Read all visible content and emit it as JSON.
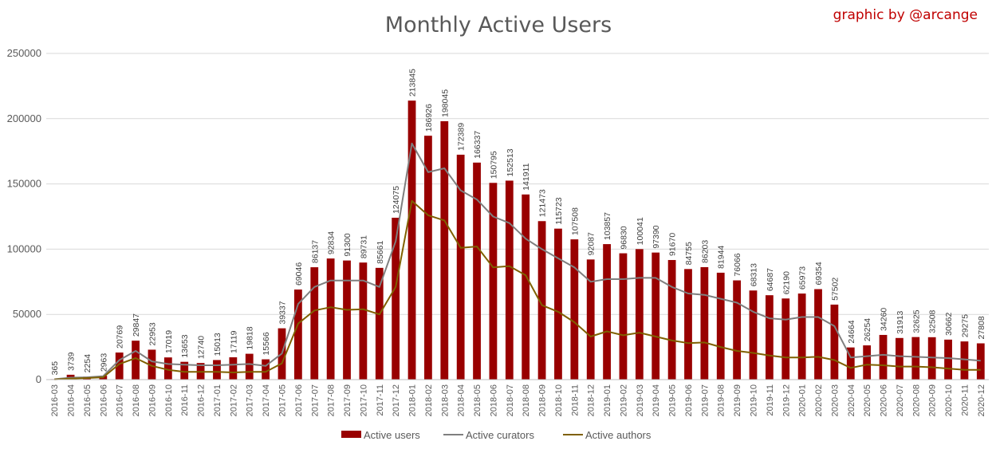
{
  "chart_data": {
    "type": "bar",
    "title": "Monthly Active Users",
    "credit": "graphic by @arcange",
    "xlabel": "",
    "ylabel": "",
    "ylim": [
      0,
      250000
    ],
    "y_ticks": [
      0,
      50000,
      100000,
      150000,
      200000,
      250000
    ],
    "grid": true,
    "legend_position": "bottom",
    "categories": [
      "2016-03",
      "2016-04",
      "2016-05",
      "2016-06",
      "2016-07",
      "2016-08",
      "2016-09",
      "2016-10",
      "2016-11",
      "2016-12",
      "2017-01",
      "2017-02",
      "2017-03",
      "2017-04",
      "2017-05",
      "2017-06",
      "2017-07",
      "2017-08",
      "2017-09",
      "2017-10",
      "2017-11",
      "2017-12",
      "2018-01",
      "2018-02",
      "2018-03",
      "2018-04",
      "2018-05",
      "2018-06",
      "2018-07",
      "2018-08",
      "2018-09",
      "2018-10",
      "2018-11",
      "2018-12",
      "2019-01",
      "2019-02",
      "2019-03",
      "2019-04",
      "2019-05",
      "2019-06",
      "2019-07",
      "2019-08",
      "2019-09",
      "2019-10",
      "2019-11",
      "2019-12",
      "2020-01",
      "2020-02",
      "2020-03",
      "2020-04",
      "2020-05",
      "2020-06",
      "2020-07",
      "2020-08",
      "2020-09",
      "2020-10",
      "2020-11",
      "2020-12"
    ],
    "series": [
      {
        "name": "Active users",
        "kind": "bar",
        "color": "#990000",
        "values": [
          365,
          3739,
          2254,
          2963,
          20769,
          29847,
          22953,
          17019,
          13653,
          12740,
          15013,
          17119,
          19818,
          15566,
          39337,
          69046,
          86137,
          92834,
          91300,
          89731,
          85661,
          124075,
          213845,
          186926,
          198045,
          172389,
          166337,
          150795,
          152513,
          141911,
          121473,
          115723,
          107508,
          92087,
          103857,
          96830,
          100041,
          97390,
          91670,
          84755,
          86203,
          81944,
          76066,
          68313,
          64687,
          62190,
          65973,
          69354,
          57502,
          24664,
          26254,
          34260,
          31913,
          32625,
          32508,
          30662,
          29275,
          27808
        ]
      },
      {
        "name": "Active curators",
        "kind": "line",
        "color": "#7f7f7f",
        "values": [
          300,
          1500,
          1800,
          2600,
          15000,
          22000,
          14000,
          12000,
          11500,
          11000,
          11000,
          11500,
          12000,
          10500,
          20000,
          58000,
          71000,
          76000,
          76000,
          76000,
          71000,
          106000,
          181000,
          159000,
          162000,
          145000,
          138000,
          125000,
          120000,
          108000,
          100000,
          93000,
          86000,
          75000,
          77000,
          77000,
          78000,
          78000,
          71000,
          66000,
          65000,
          62000,
          59000,
          52000,
          47000,
          46000,
          48000,
          48000,
          41000,
          17000,
          18000,
          19000,
          18000,
          17500,
          17000,
          16500,
          15500,
          14500
        ]
      },
      {
        "name": "Active authors",
        "kind": "line",
        "color": "#7f6000",
        "values": [
          200,
          800,
          1200,
          1800,
          12000,
          16500,
          10500,
          7500,
          6000,
          6000,
          6000,
          5500,
          6000,
          6000,
          12500,
          43000,
          53000,
          55500,
          53500,
          54000,
          50000,
          71000,
          137000,
          126000,
          122000,
          101000,
          102000,
          86000,
          87000,
          80000,
          57000,
          52000,
          44000,
          33000,
          37000,
          34000,
          36000,
          33000,
          30000,
          28000,
          28500,
          25000,
          22000,
          20500,
          18500,
          17000,
          17000,
          17500,
          15000,
          9000,
          11500,
          11000,
          10000,
          10000,
          9500,
          8500,
          7500,
          7500
        ]
      }
    ]
  }
}
